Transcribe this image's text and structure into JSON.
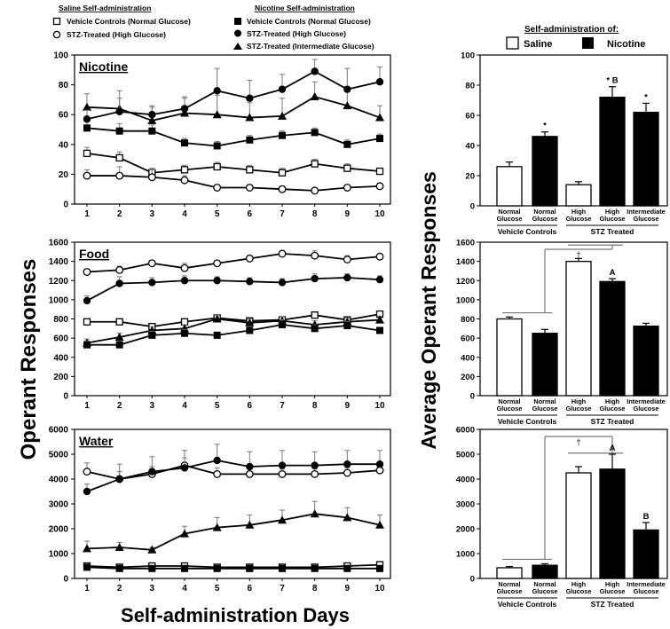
{
  "legend_left": {
    "saline_header": "Saline Self-administration",
    "nicotine_header": "Nicotine Self-administration",
    "items": [
      {
        "marker": "square-open",
        "label": "Vehicle Controls (Normal Glucose)"
      },
      {
        "marker": "circle-open",
        "label": "STZ-Treated (High Glucose)"
      },
      {
        "marker": "square-filled",
        "label": "Vehicle Controls (Normal Glucose)"
      },
      {
        "marker": "circle-filled",
        "label": "STZ-Treated (High Glucose)"
      },
      {
        "marker": "triangle-filled",
        "label": "STZ-Treated (Intermediate Glucose)"
      }
    ]
  },
  "legend_right": {
    "header": "Self-administration of:",
    "saline": "Saline",
    "nicotine": "Nicotine"
  },
  "left_ylabel": "Operant Responses",
  "left_xlabel": "Self-administration Days",
  "right_ylabel": "Average Operant Responses",
  "chart_data": [
    {
      "type": "line",
      "title": "Nicotine",
      "x": [
        1,
        2,
        3,
        4,
        5,
        6,
        7,
        8,
        9,
        10
      ],
      "ylim": [
        0,
        100
      ],
      "yticks": [
        0,
        20,
        40,
        60,
        80,
        100
      ],
      "series": [
        {
          "marker": "square-open",
          "values": [
            34,
            31,
            21,
            23,
            25,
            23,
            21,
            27,
            24,
            22
          ],
          "errors": [
            4,
            4,
            3,
            3,
            3,
            3,
            3,
            3,
            3,
            2
          ]
        },
        {
          "marker": "circle-open",
          "values": [
            19,
            19,
            18,
            16,
            11,
            11,
            10,
            9,
            11,
            12
          ],
          "errors": [
            4,
            6,
            5,
            3,
            2,
            2,
            2,
            2,
            2,
            2
          ]
        },
        {
          "marker": "square-filled",
          "values": [
            51,
            49,
            49,
            41,
            39,
            43,
            46,
            48,
            40,
            44
          ],
          "errors": [
            5,
            5,
            4,
            3,
            3,
            3,
            3,
            3,
            3,
            3
          ]
        },
        {
          "marker": "circle-filled",
          "values": [
            57,
            62,
            60,
            64,
            76,
            71,
            77,
            89,
            77,
            82
          ],
          "errors": [
            6,
            9,
            6,
            7,
            15,
            12,
            10,
            8,
            14,
            10
          ]
        },
        {
          "marker": "triangle-filled",
          "values": [
            65,
            64,
            56,
            61,
            60,
            58,
            59,
            72,
            66,
            58
          ],
          "errors": [
            9,
            12,
            9,
            11,
            13,
            10,
            12,
            10,
            10,
            8
          ]
        }
      ]
    },
    {
      "type": "line",
      "title": "Food",
      "x": [
        1,
        2,
        3,
        4,
        5,
        6,
        7,
        8,
        9,
        10
      ],
      "ylim": [
        0,
        1600
      ],
      "yticks": [
        0,
        200,
        400,
        600,
        800,
        1000,
        1200,
        1400,
        1600
      ],
      "series": [
        {
          "marker": "square-open",
          "values": [
            770,
            770,
            720,
            770,
            810,
            780,
            790,
            840,
            790,
            850
          ],
          "errors": [
            30,
            30,
            30,
            30,
            30,
            30,
            30,
            30,
            30,
            30
          ]
        },
        {
          "marker": "circle-open",
          "values": [
            1290,
            1310,
            1380,
            1330,
            1380,
            1430,
            1480,
            1460,
            1420,
            1450
          ],
          "errors": [
            30,
            40,
            30,
            50,
            30,
            30,
            30,
            50,
            40,
            30
          ]
        },
        {
          "marker": "square-filled",
          "values": [
            530,
            530,
            630,
            650,
            630,
            680,
            740,
            700,
            730,
            680
          ],
          "errors": [
            40,
            40,
            40,
            40,
            30,
            40,
            50,
            40,
            40,
            30
          ]
        },
        {
          "marker": "circle-filled",
          "values": [
            990,
            1170,
            1180,
            1200,
            1200,
            1190,
            1180,
            1220,
            1230,
            1210
          ],
          "errors": [
            50,
            70,
            50,
            50,
            40,
            40,
            40,
            50,
            40,
            40
          ]
        },
        {
          "marker": "triangle-filled",
          "values": [
            550,
            610,
            680,
            700,
            800,
            760,
            780,
            740,
            770,
            790
          ],
          "errors": [
            40,
            40,
            40,
            40,
            40,
            40,
            40,
            40,
            40,
            40
          ]
        }
      ]
    },
    {
      "type": "line",
      "title": "Water",
      "x": [
        1,
        2,
        3,
        4,
        5,
        6,
        7,
        8,
        9,
        10
      ],
      "ylim": [
        0,
        6000
      ],
      "yticks": [
        0,
        1000,
        2000,
        3000,
        4000,
        5000,
        6000
      ],
      "series": [
        {
          "marker": "square-open",
          "values": [
            500,
            450,
            500,
            500,
            450,
            450,
            450,
            450,
            500,
            550
          ],
          "errors": [
            80,
            80,
            80,
            80,
            80,
            80,
            80,
            80,
            80,
            80
          ]
        },
        {
          "marker": "circle-open",
          "values": [
            4300,
            4000,
            4200,
            4550,
            4200,
            4200,
            4200,
            4200,
            4250,
            4350
          ],
          "errors": [
            350,
            300,
            300,
            300,
            250,
            200,
            200,
            200,
            200,
            200
          ]
        },
        {
          "marker": "square-filled",
          "values": [
            450,
            400,
            400,
            400,
            400,
            400,
            400,
            400,
            400,
            400
          ],
          "errors": [
            50,
            50,
            50,
            50,
            50,
            50,
            50,
            50,
            50,
            50
          ]
        },
        {
          "marker": "circle-filled",
          "values": [
            3500,
            4000,
            4300,
            4450,
            4750,
            4500,
            4550,
            4550,
            4600,
            4600
          ],
          "errors": [
            300,
            600,
            600,
            700,
            650,
            600,
            600,
            550,
            550,
            550
          ]
        },
        {
          "marker": "triangle-filled",
          "values": [
            1200,
            1250,
            1150,
            1800,
            2050,
            2150,
            2350,
            2600,
            2450,
            2150
          ],
          "errors": [
            300,
            200,
            100,
            300,
            400,
            400,
            400,
            500,
            400,
            400
          ]
        }
      ]
    },
    {
      "type": "bar",
      "categories": [
        "Normal\nGlucose",
        "Normal\nGlucose",
        "High\nGlucose",
        "High\nGlucose",
        "Intermediate\nGlucose"
      ],
      "fills": [
        "saline",
        "nicotine",
        "saline",
        "nicotine",
        "nicotine"
      ],
      "values": [
        26,
        46,
        14,
        72,
        62
      ],
      "errors": [
        3,
        3,
        2,
        7,
        6
      ],
      "annotations": [
        "",
        "*",
        "",
        "* B",
        "*"
      ],
      "ylim": [
        0,
        100
      ],
      "yticks": [
        0,
        20,
        40,
        60,
        80,
        100
      ],
      "group_labels": [
        "Vehicle Controls",
        "STZ Treated"
      ]
    },
    {
      "type": "bar",
      "categories": [
        "Normal\nGlucose",
        "Normal\nGlucose",
        "High\nGlucose",
        "High\nGlucose",
        "Intermediate\nGlucose"
      ],
      "fills": [
        "saline",
        "nicotine",
        "saline",
        "nicotine",
        "nicotine"
      ],
      "values": [
        800,
        650,
        1400,
        1190,
        725
      ],
      "errors": [
        20,
        40,
        30,
        30,
        30
      ],
      "annotations": [
        "",
        "",
        "",
        "A",
        ""
      ],
      "bracket_symbol": "†",
      "ylim": [
        0,
        1600
      ],
      "yticks": [
        0,
        200,
        400,
        600,
        800,
        1000,
        1200,
        1400,
        1600
      ],
      "group_labels": [
        "Vehicle Controls",
        "STZ Treated"
      ]
    },
    {
      "type": "bar",
      "categories": [
        "Normal\nGlucose",
        "Normal\nGlucose",
        "High\nGlucose",
        "High\nGlucose",
        "Intermediate\nGlucose"
      ],
      "fills": [
        "saline",
        "nicotine",
        "saline",
        "nicotine",
        "nicotine"
      ],
      "values": [
        430,
        530,
        4250,
        4400,
        1950
      ],
      "errors": [
        50,
        60,
        250,
        600,
        300
      ],
      "annotations": [
        "",
        "",
        "",
        "A",
        "B"
      ],
      "bracket_symbol": "†",
      "ylim": [
        0,
        6000
      ],
      "yticks": [
        0,
        1000,
        2000,
        3000,
        4000,
        5000,
        6000
      ],
      "group_labels": [
        "Vehicle Controls",
        "STZ Treated"
      ]
    }
  ]
}
